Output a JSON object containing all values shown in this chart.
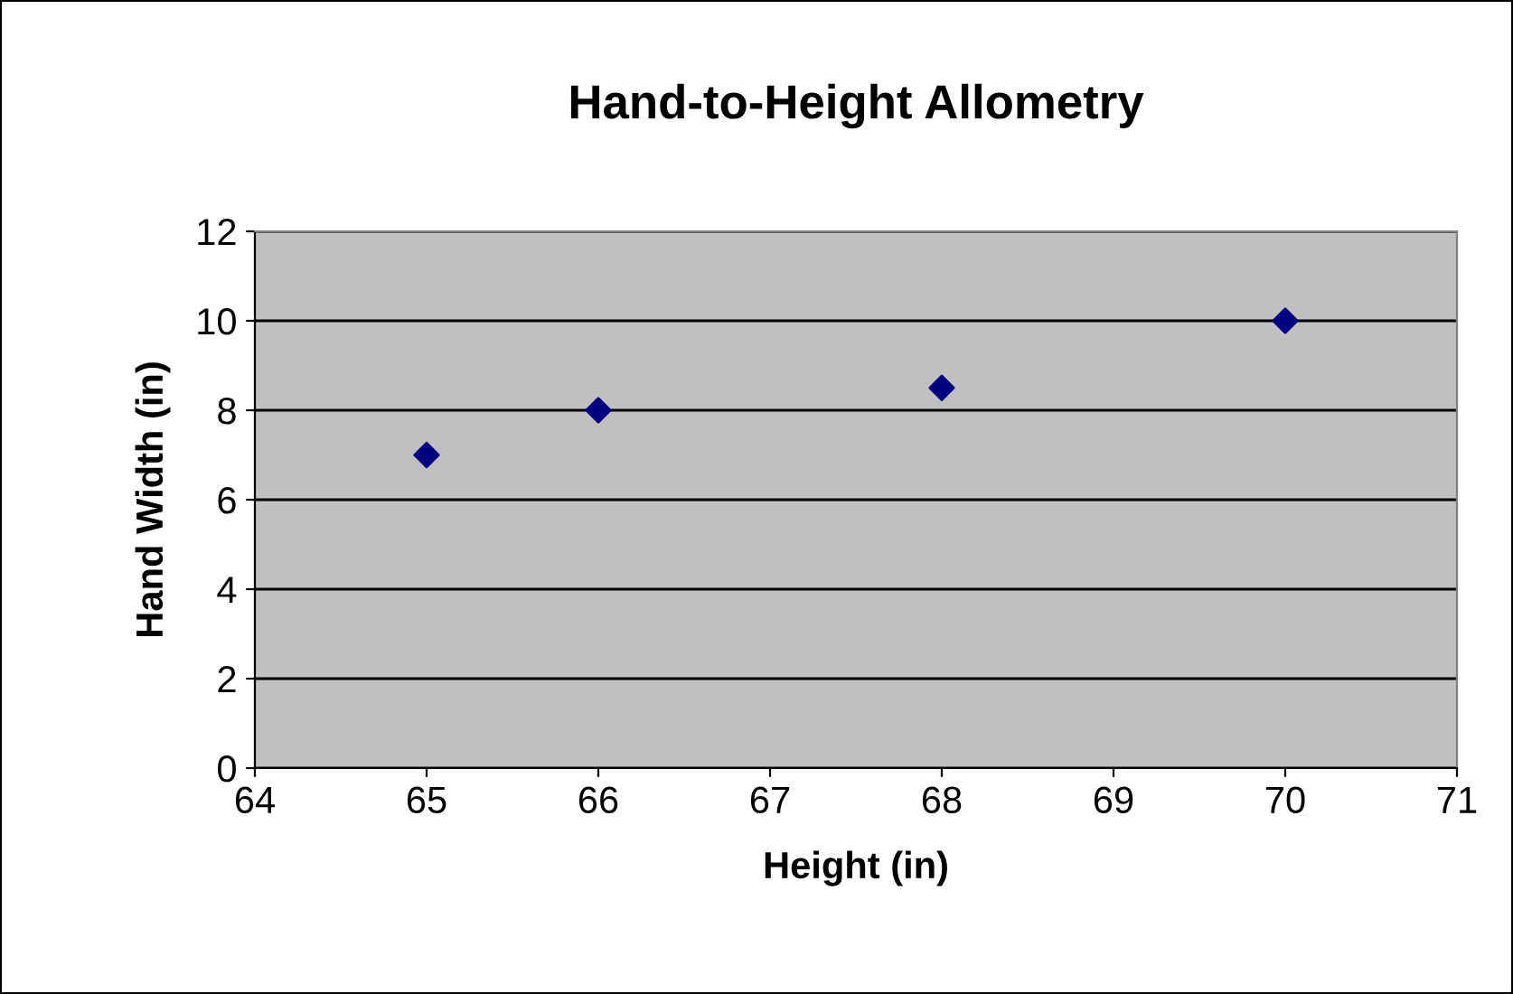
{
  "chart_data": {
    "type": "scatter",
    "title": "Hand-to-Height Allometry",
    "xlabel": "Height (in)",
    "ylabel": "Hand Width (in)",
    "x": [
      65,
      66,
      68,
      70
    ],
    "series": [
      {
        "color": "#000080",
        "values": [
          7,
          8,
          8.5,
          10
        ]
      }
    ],
    "xlim": [
      64,
      71
    ],
    "xticks": [
      64,
      65,
      66,
      67,
      68,
      69,
      70,
      71
    ],
    "ylim": [
      0,
      12
    ],
    "yticks": [
      0,
      2,
      4,
      6,
      8,
      10,
      12
    ],
    "grid": "y",
    "marker": "diamond"
  }
}
